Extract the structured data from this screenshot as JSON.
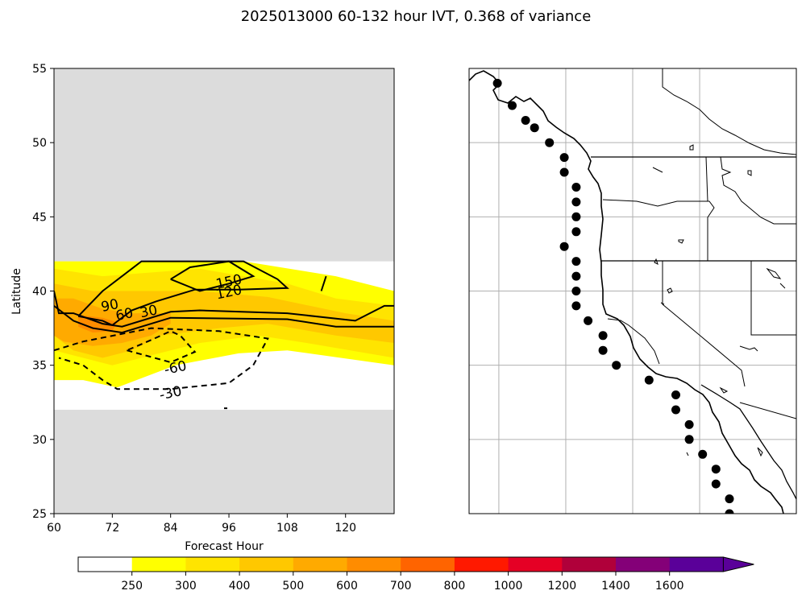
{
  "chart_data": [
    {
      "type": "heatmap",
      "title": "2025013000 60-132 hour IVT, 0.368 of variance",
      "xlabel": "Forecast Hour",
      "ylabel": "Latitude",
      "xlim": [
        60,
        130
      ],
      "ylim": [
        25,
        55
      ],
      "xticks": [
        60,
        72,
        84,
        96,
        108,
        120
      ],
      "yticks": [
        25,
        30,
        35,
        40,
        45,
        50,
        55
      ],
      "masked_background": "#dcdcdc",
      "data_band_lat": [
        32,
        42
      ],
      "filled_ivt_regions": [
        {
          "level": 250,
          "color": "#ffff00",
          "polygon": [
            [
              60,
              42
            ],
            [
              99,
              42
            ],
            [
              118,
              41
            ],
            [
              130,
              40
            ],
            [
              130,
              35
            ],
            [
              108,
              36
            ],
            [
              98,
              35.8
            ],
            [
              85,
              35
            ],
            [
              73,
              33.5
            ],
            [
              66,
              34
            ],
            [
              60,
              34
            ]
          ]
        },
        {
          "level": 300,
          "color": "#ffe400",
          "polygon": [
            [
              60,
              41.5
            ],
            [
              70,
              41
            ],
            [
              90,
              41.5
            ],
            [
              108,
              40.5
            ],
            [
              118,
              39.5
            ],
            [
              130,
              39
            ],
            [
              130,
              35.5
            ],
            [
              112,
              36.5
            ],
            [
              102,
              37
            ],
            [
              90,
              36.5
            ],
            [
              78,
              35.5
            ],
            [
              72,
              35
            ],
            [
              66,
              35.5
            ],
            [
              60,
              36
            ]
          ]
        },
        {
          "level": 400,
          "color": "#ffc800",
          "polygon": [
            [
              60,
              40.5
            ],
            [
              68,
              40
            ],
            [
              78,
              40
            ],
            [
              90,
              40
            ],
            [
              104,
              39.6
            ],
            [
              120,
              38.5
            ],
            [
              130,
              38
            ],
            [
              130,
              36.5
            ],
            [
              118,
              37
            ],
            [
              104,
              37.8
            ],
            [
              94,
              37.5
            ],
            [
              82,
              37
            ],
            [
              76,
              36
            ],
            [
              70,
              35.5
            ],
            [
              64,
              36
            ],
            [
              60,
              37
            ]
          ]
        },
        {
          "level": 500,
          "color": "#ffaa00",
          "polygon": [
            [
              60,
              39.5
            ],
            [
              64,
              39.5
            ],
            [
              70,
              38.8
            ],
            [
              76,
              38.5
            ],
            [
              84,
              38.5
            ],
            [
              84,
              37.8
            ],
            [
              80,
              37
            ],
            [
              74,
              36.5
            ],
            [
              68,
              36.3
            ],
            [
              62,
              36.6
            ],
            [
              60,
              37
            ]
          ]
        },
        {
          "level": 600,
          "color": "#ff8c00",
          "polygon": [
            [
              65,
              38.4
            ],
            [
              70,
              38.2
            ],
            [
              73,
              37.9
            ],
            [
              72,
              37.3
            ],
            [
              68,
              37.2
            ],
            [
              65,
              37.6
            ]
          ]
        }
      ],
      "contour_lines": [
        {
          "label": "150",
          "style": "solid",
          "points": [
            [
              84,
              40.8
            ],
            [
              88,
              41.6
            ],
            [
              96,
              42
            ],
            [
              101,
              41
            ],
            [
              96,
              40.5
            ],
            [
              90,
              40
            ],
            [
              84,
              40.8
            ]
          ]
        },
        {
          "label": "120",
          "style": "solid",
          "points": [
            [
              65,
              38.3
            ],
            [
              70,
              40
            ],
            [
              76,
              41.5
            ],
            [
              78,
              42
            ],
            [
              99,
              42
            ],
            [
              106,
              40.8
            ],
            [
              108,
              40.2
            ],
            [
              98,
              40.1
            ],
            [
              89,
              40.1
            ],
            [
              81,
              39.3
            ],
            [
              76,
              38.7
            ],
            [
              72,
              37.7
            ],
            [
              70,
              38
            ],
            [
              65,
              38.3
            ]
          ]
        },
        {
          "label": "120",
          "style": "solid",
          "points": [
            [
              115,
              40
            ],
            [
              116,
              41
            ]
          ]
        },
        {
          "label": "90",
          "style": "solid",
          "points": [
            [
              60,
              40
            ],
            [
              61,
              38.5
            ],
            [
              64,
              38.5
            ],
            [
              70,
              37.8
            ],
            [
              74,
              37.6
            ],
            [
              84,
              38.6
            ],
            [
              90,
              38.7
            ],
            [
              108,
              38.5
            ],
            [
              122,
              38
            ],
            [
              128,
              39
            ],
            [
              130,
              39
            ]
          ]
        },
        {
          "label": "30",
          "style": "solid",
          "points": [
            [
              60,
              39
            ],
            [
              64,
              38
            ],
            [
              68,
              37.5
            ],
            [
              74,
              37.2
            ],
            [
              84,
              38.2
            ],
            [
              108,
              38.1
            ],
            [
              118,
              37.6
            ],
            [
              130,
              37.6
            ]
          ]
        },
        {
          "label": "-60",
          "style": "dashed",
          "points": [
            [
              75,
              36
            ],
            [
              84,
              35.2
            ],
            [
              89,
              35.9
            ],
            [
              86,
              37
            ],
            [
              84,
              37.3
            ],
            [
              80,
              36.7
            ],
            [
              75,
              36
            ]
          ]
        },
        {
          "label": "-30",
          "style": "dashed",
          "points": [
            [
              60,
              36
            ],
            [
              66,
              36.6
            ],
            [
              80,
              37.5
            ],
            [
              94,
              37.3
            ],
            [
              104,
              36.8
            ],
            [
              101,
              35
            ],
            [
              96,
              33.8
            ],
            [
              84,
              33.4
            ],
            [
              73,
              33.4
            ],
            [
              70,
              34
            ],
            [
              66,
              35
            ],
            [
              61,
              35.5
            ]
          ]
        }
      ],
      "contour_labels": [
        {
          "text": "150",
          "x": 96,
          "y": 40.6
        },
        {
          "text": "120",
          "x": 96,
          "y": 39.9
        },
        {
          "text": "90",
          "x": 71.5,
          "y": 39
        },
        {
          "text": "60",
          "x": 74.5,
          "y": 38.4
        },
        {
          "text": "30",
          "x": 79.5,
          "y": 38.6
        },
        {
          "text": "-60",
          "x": 85,
          "y": 34.8
        },
        {
          "text": "-30",
          "x": 84,
          "y": 33.1
        }
      ]
    },
    {
      "type": "scatter",
      "title": "",
      "map_extent_lon": [
        -130,
        -108
      ],
      "map_extent_lat": [
        25,
        55
      ],
      "gridline_lon": [
        -128,
        -123.5,
        -119,
        -114.5
      ],
      "gridline_lat": [
        30,
        35,
        40,
        45,
        50
      ],
      "state_border_lat": [
        42,
        49
      ],
      "points": [
        [
          -128.1,
          54
        ],
        [
          -127.1,
          52.5
        ],
        [
          -126.2,
          51.5
        ],
        [
          -125.6,
          51
        ],
        [
          -124.6,
          50
        ],
        [
          -123.6,
          49
        ],
        [
          -123.6,
          48
        ],
        [
          -122.8,
          47
        ],
        [
          -122.8,
          46
        ],
        [
          -122.8,
          45
        ],
        [
          -122.8,
          44
        ],
        [
          -123.6,
          43
        ],
        [
          -122.8,
          42
        ],
        [
          -122.8,
          41
        ],
        [
          -122.8,
          40
        ],
        [
          -122.8,
          39
        ],
        [
          -122,
          38
        ],
        [
          -121,
          37
        ],
        [
          -121,
          36
        ],
        [
          -120.1,
          35
        ],
        [
          -117.9,
          34
        ],
        [
          -116.1,
          33
        ],
        [
          -116.1,
          32
        ],
        [
          -115.2,
          31
        ],
        [
          -115.2,
          30
        ],
        [
          -114.3,
          29
        ],
        [
          -113.4,
          28
        ],
        [
          -113.4,
          27
        ],
        [
          -112.5,
          26
        ],
        [
          -112.5,
          25
        ]
      ]
    },
    {
      "type": "colorbar",
      "levels": [
        250,
        300,
        400,
        500,
        600,
        700,
        800,
        1000,
        1200,
        1400,
        1600
      ],
      "labels": [
        "250",
        "300",
        "400",
        "500",
        "600",
        "700",
        "800",
        "1000",
        "1200",
        "1400",
        "1600"
      ],
      "colors": [
        "#ffffff",
        "#ffff00",
        "#ffe400",
        "#ffc800",
        "#ffaa00",
        "#ff8c00",
        "#ff6400",
        "#ff1900",
        "#e50025",
        "#b0003a",
        "#840078",
        "#5a0099"
      ]
    }
  ]
}
